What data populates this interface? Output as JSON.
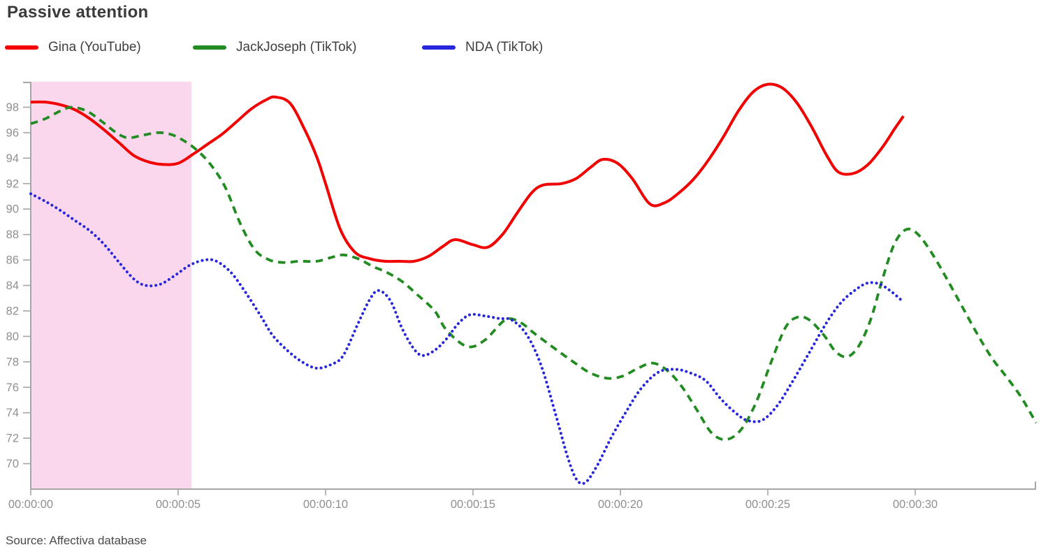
{
  "title": "Passive attention",
  "source": "Source: Affectiva database",
  "legend": [
    {
      "label": "Gina (YouTube)",
      "color": "#f20000"
    },
    {
      "label": "JackJoseph (TikTok)",
      "color": "#228b22"
    },
    {
      "label": "NDA (TikTok)",
      "color": "#2626dd"
    }
  ],
  "chart_data": {
    "type": "line",
    "title": "Passive attention",
    "xlabel": "",
    "ylabel": "",
    "x_unit": "time (hh:mm:ss)",
    "xlim_seconds": [
      0,
      34.1
    ],
    "ylim": [
      68,
      100
    ],
    "grid": false,
    "legend_position": "top",
    "axis_color": "#a6a6a6",
    "tick_label_color": "#8f8f8f",
    "highlight_region": {
      "t_start": 0,
      "t_end": 5.45,
      "color": "#fbd7ee"
    },
    "x_ticks": [
      {
        "t": 0,
        "label": "00:00:00"
      },
      {
        "t": 5,
        "label": "00:00:05"
      },
      {
        "t": 10,
        "label": "00:00:10"
      },
      {
        "t": 15,
        "label": "00:00:15"
      },
      {
        "t": 20,
        "label": "00:00:20"
      },
      {
        "t": 25,
        "label": "00:00:25"
      },
      {
        "t": 30,
        "label": "00:00:30"
      }
    ],
    "y_ticks": [
      98,
      96,
      94,
      92,
      90,
      88,
      86,
      84,
      82,
      80,
      78,
      76,
      74,
      72,
      70
    ],
    "series": [
      {
        "name": "Gina (YouTube)",
        "color": "#f20000",
        "style": "solid",
        "points": [
          [
            0,
            98.4
          ],
          [
            0.5,
            98.4
          ],
          [
            1,
            98.2
          ],
          [
            1.5,
            97.8
          ],
          [
            2,
            97.1
          ],
          [
            2.5,
            96.2
          ],
          [
            3,
            95.2
          ],
          [
            3.5,
            94.2
          ],
          [
            4,
            93.7
          ],
          [
            4.5,
            93.5
          ],
          [
            5,
            93.6
          ],
          [
            5.5,
            94.3
          ],
          [
            6,
            95.1
          ],
          [
            6.5,
            95.9
          ],
          [
            7,
            96.9
          ],
          [
            7.5,
            97.9
          ],
          [
            8,
            98.6
          ],
          [
            8.3,
            98.8
          ],
          [
            8.8,
            98.3
          ],
          [
            9.3,
            96.2
          ],
          [
            9.7,
            94.1
          ],
          [
            10,
            92.0
          ],
          [
            10.5,
            88.4
          ],
          [
            11,
            86.6
          ],
          [
            11.5,
            86.1
          ],
          [
            12,
            85.9
          ],
          [
            12.5,
            85.9
          ],
          [
            13,
            85.9
          ],
          [
            13.5,
            86.3
          ],
          [
            14,
            87.1
          ],
          [
            14.4,
            87.6
          ],
          [
            15,
            87.2
          ],
          [
            15.5,
            87.0
          ],
          [
            16,
            88.0
          ],
          [
            16.5,
            89.7
          ],
          [
            17,
            91.3
          ],
          [
            17.4,
            91.9
          ],
          [
            18,
            92.0
          ],
          [
            18.5,
            92.4
          ],
          [
            19,
            93.3
          ],
          [
            19.4,
            93.9
          ],
          [
            19.9,
            93.6
          ],
          [
            20.4,
            92.4
          ],
          [
            21,
            90.4
          ],
          [
            21.5,
            90.5
          ],
          [
            22,
            91.3
          ],
          [
            22.5,
            92.4
          ],
          [
            23,
            93.9
          ],
          [
            23.5,
            95.7
          ],
          [
            24,
            97.7
          ],
          [
            24.5,
            99.2
          ],
          [
            25,
            99.8
          ],
          [
            25.5,
            99.5
          ],
          [
            26,
            98.3
          ],
          [
            26.5,
            96.4
          ],
          [
            27,
            94.2
          ],
          [
            27.4,
            92.9
          ],
          [
            27.9,
            92.8
          ],
          [
            28.4,
            93.5
          ],
          [
            28.9,
            94.9
          ],
          [
            29.3,
            96.3
          ],
          [
            29.6,
            97.3
          ]
        ]
      },
      {
        "name": "JackJoseph (TikTok)",
        "color": "#228b22",
        "style": "dashed",
        "points": [
          [
            0,
            96.7
          ],
          [
            0.5,
            97.1
          ],
          [
            1,
            97.7
          ],
          [
            1.4,
            98.0
          ],
          [
            1.9,
            97.7
          ],
          [
            2.4,
            96.9
          ],
          [
            2.9,
            96.0
          ],
          [
            3.3,
            95.6
          ],
          [
            3.8,
            95.8
          ],
          [
            4.3,
            96.0
          ],
          [
            4.7,
            95.9
          ],
          [
            5.1,
            95.5
          ],
          [
            5.6,
            94.7
          ],
          [
            6.1,
            93.5
          ],
          [
            6.6,
            91.7
          ],
          [
            7.1,
            88.9
          ],
          [
            7.6,
            86.8
          ],
          [
            8.1,
            86.0
          ],
          [
            8.6,
            85.8
          ],
          [
            9.1,
            85.9
          ],
          [
            9.7,
            85.9
          ],
          [
            10.2,
            86.2
          ],
          [
            10.6,
            86.4
          ],
          [
            11.1,
            86.1
          ],
          [
            11.6,
            85.5
          ],
          [
            12.1,
            85.0
          ],
          [
            12.6,
            84.3
          ],
          [
            13.1,
            83.3
          ],
          [
            13.7,
            82.0
          ],
          [
            14.1,
            80.5
          ],
          [
            14.8,
            79.2
          ],
          [
            15.4,
            79.7
          ],
          [
            16.1,
            81.3
          ],
          [
            16.6,
            81.1
          ],
          [
            17.1,
            80.2
          ],
          [
            17.8,
            79.0
          ],
          [
            18.4,
            78.0
          ],
          [
            19,
            77.1
          ],
          [
            19.6,
            76.7
          ],
          [
            20.1,
            76.9
          ],
          [
            20.6,
            77.5
          ],
          [
            21.1,
            77.9
          ],
          [
            21.6,
            77.3
          ],
          [
            22.1,
            76.0
          ],
          [
            22.6,
            74.2
          ],
          [
            23.1,
            72.4
          ],
          [
            23.6,
            71.9
          ],
          [
            24.1,
            72.7
          ],
          [
            24.6,
            74.8
          ],
          [
            25.1,
            77.9
          ],
          [
            25.6,
            80.7
          ],
          [
            26,
            81.5
          ],
          [
            26.4,
            81.3
          ],
          [
            26.9,
            80.1
          ],
          [
            27.3,
            78.8
          ],
          [
            27.7,
            78.4
          ],
          [
            28.1,
            79.3
          ],
          [
            28.5,
            81.4
          ],
          [
            28.9,
            84.6
          ],
          [
            29.3,
            87.3
          ],
          [
            29.7,
            88.4
          ],
          [
            30.1,
            88.0
          ],
          [
            30.6,
            86.4
          ],
          [
            31.1,
            84.4
          ],
          [
            31.6,
            82.3
          ],
          [
            32.1,
            80.2
          ],
          [
            32.6,
            78.3
          ],
          [
            33.1,
            76.8
          ],
          [
            33.6,
            75.2
          ],
          [
            34.1,
            73.2
          ]
        ]
      },
      {
        "name": "NDA (TikTok)",
        "color": "#2626dd",
        "style": "dotted",
        "points": [
          [
            0,
            91.2
          ],
          [
            0.5,
            90.6
          ],
          [
            1,
            89.9
          ],
          [
            1.5,
            89.1
          ],
          [
            2,
            88.3
          ],
          [
            2.5,
            87.2
          ],
          [
            3,
            85.8
          ],
          [
            3.5,
            84.5
          ],
          [
            3.9,
            84.0
          ],
          [
            4.4,
            84.1
          ],
          [
            4.9,
            84.8
          ],
          [
            5.4,
            85.6
          ],
          [
            5.9,
            86.0
          ],
          [
            6.3,
            85.9
          ],
          [
            6.8,
            85.0
          ],
          [
            7.3,
            83.4
          ],
          [
            7.8,
            81.6
          ],
          [
            8.2,
            80.1
          ],
          [
            8.7,
            78.9
          ],
          [
            9.2,
            78.0
          ],
          [
            9.7,
            77.5
          ],
          [
            10.2,
            77.8
          ],
          [
            10.6,
            78.5
          ],
          [
            11.1,
            81.0
          ],
          [
            11.5,
            82.9
          ],
          [
            11.8,
            83.6
          ],
          [
            12.2,
            82.8
          ],
          [
            12.6,
            80.6
          ],
          [
            13,
            79.0
          ],
          [
            13.3,
            78.5
          ],
          [
            13.7,
            78.9
          ],
          [
            14.1,
            79.8
          ],
          [
            14.5,
            81.0
          ],
          [
            14.9,
            81.7
          ],
          [
            15.4,
            81.6
          ],
          [
            15.9,
            81.4
          ],
          [
            16.3,
            81.3
          ],
          [
            16.8,
            80.2
          ],
          [
            17.3,
            77.8
          ],
          [
            17.8,
            73.9
          ],
          [
            18.2,
            70.6
          ],
          [
            18.5,
            68.8
          ],
          [
            18.8,
            68.5
          ],
          [
            19.2,
            69.8
          ],
          [
            19.7,
            72.1
          ],
          [
            20.2,
            74.1
          ],
          [
            20.7,
            75.9
          ],
          [
            21.3,
            77.2
          ],
          [
            21.9,
            77.4
          ],
          [
            22.4,
            77.1
          ],
          [
            22.9,
            76.5
          ],
          [
            23.4,
            75.1
          ],
          [
            23.9,
            74.0
          ],
          [
            24.3,
            73.4
          ],
          [
            24.8,
            73.4
          ],
          [
            25.3,
            74.5
          ],
          [
            25.8,
            76.3
          ],
          [
            26.4,
            78.7
          ],
          [
            27,
            81.1
          ],
          [
            27.5,
            82.7
          ],
          [
            28,
            83.7
          ],
          [
            28.4,
            84.2
          ],
          [
            28.8,
            84.1
          ],
          [
            29.2,
            83.5
          ],
          [
            29.5,
            82.9
          ]
        ]
      }
    ]
  }
}
